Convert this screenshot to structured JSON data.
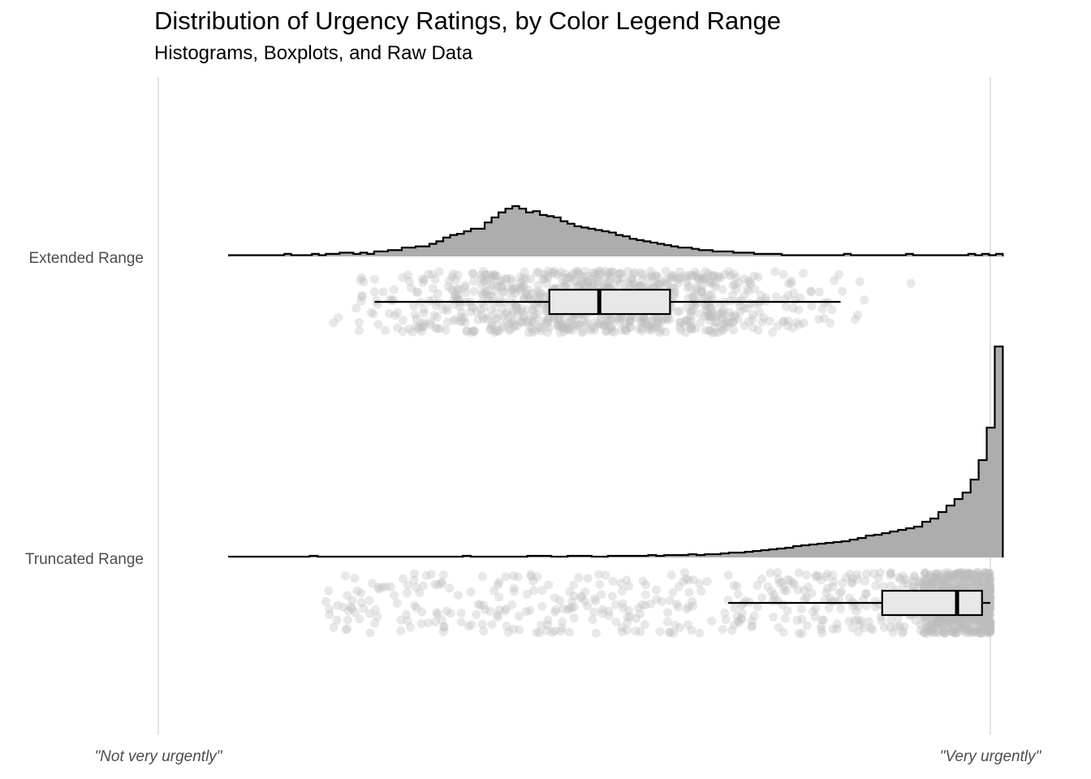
{
  "chart_data": {
    "type": "histogram-boxplot-raincloud",
    "title": "Distribution of Urgency Ratings, by Color Legend Range",
    "subtitle": "Histograms, Boxplots, and Raw Data",
    "xlim": [
      0,
      100
    ],
    "x_ticks": [
      {
        "value": 0,
        "label": "\"Not very urgently\""
      },
      {
        "value": 100,
        "label": "\"Very urgently\""
      }
    ],
    "grid": "vertical lines at x ticks",
    "fill_color": "#adadad",
    "box_fill_color": "#e8e8e8",
    "point_color": "#bdbdbd",
    "groups": [
      {
        "name": "Extended Range",
        "hist_range": [
          8.5,
          101.5
        ],
        "hist_counts": [
          1,
          1,
          1,
          1,
          1,
          1,
          1,
          1,
          2,
          1,
          1,
          1,
          2,
          1,
          2,
          2,
          3,
          3,
          2,
          3,
          2,
          4,
          4,
          5,
          5,
          7,
          7,
          8,
          8,
          10,
          12,
          15,
          17,
          18,
          20,
          22,
          22,
          27,
          31,
          35,
          38,
          40,
          38,
          35,
          36,
          33,
          32,
          31,
          28,
          26,
          24,
          23,
          22,
          21,
          20,
          19,
          17,
          16,
          14,
          13,
          12,
          11,
          10,
          9,
          8,
          7,
          7,
          6,
          5,
          5,
          4,
          4,
          4,
          3,
          3,
          3,
          2,
          2,
          2,
          2,
          1,
          1,
          1,
          1,
          1,
          1,
          1,
          1,
          1,
          2,
          1,
          1,
          1,
          1,
          1,
          1,
          1,
          1,
          2,
          1,
          1,
          1,
          1,
          1,
          1,
          1,
          1,
          2,
          1,
          2,
          1,
          2
        ],
        "box": {
          "whisker_low": 26,
          "q1": 47,
          "median": 53,
          "q3": 61.5,
          "whisker_high": 82
        },
        "points_range": [
          10,
          100
        ]
      },
      {
        "name": "Truncated Range",
        "hist_range": [
          8.5,
          101.5
        ],
        "hist_counts": [
          1,
          1,
          1,
          1,
          1,
          1,
          1,
          1,
          1,
          1,
          2,
          1,
          1,
          1,
          1,
          1,
          1,
          1,
          1,
          1,
          1,
          1,
          1,
          1,
          1,
          1,
          1,
          1,
          1,
          2,
          1,
          1,
          1,
          1,
          1,
          1,
          1,
          2,
          2,
          2,
          1,
          1,
          2,
          2,
          2,
          1,
          1,
          2,
          2,
          2,
          2,
          2,
          3,
          2,
          3,
          3,
          3,
          4,
          3,
          4,
          4,
          5,
          6,
          6,
          7,
          8,
          9,
          10,
          11,
          12,
          14,
          15,
          16,
          17,
          18,
          19,
          20,
          22,
          24,
          27,
          28,
          30,
          32,
          34,
          36,
          38,
          44,
          48,
          56,
          64,
          72,
          80,
          96,
          120,
          160,
          260
        ],
        "box": {
          "whisker_low": 68.5,
          "q1": 87,
          "median": 96,
          "q3": 99,
          "whisker_high": 100
        },
        "points_range": [
          14,
          100
        ]
      }
    ]
  }
}
